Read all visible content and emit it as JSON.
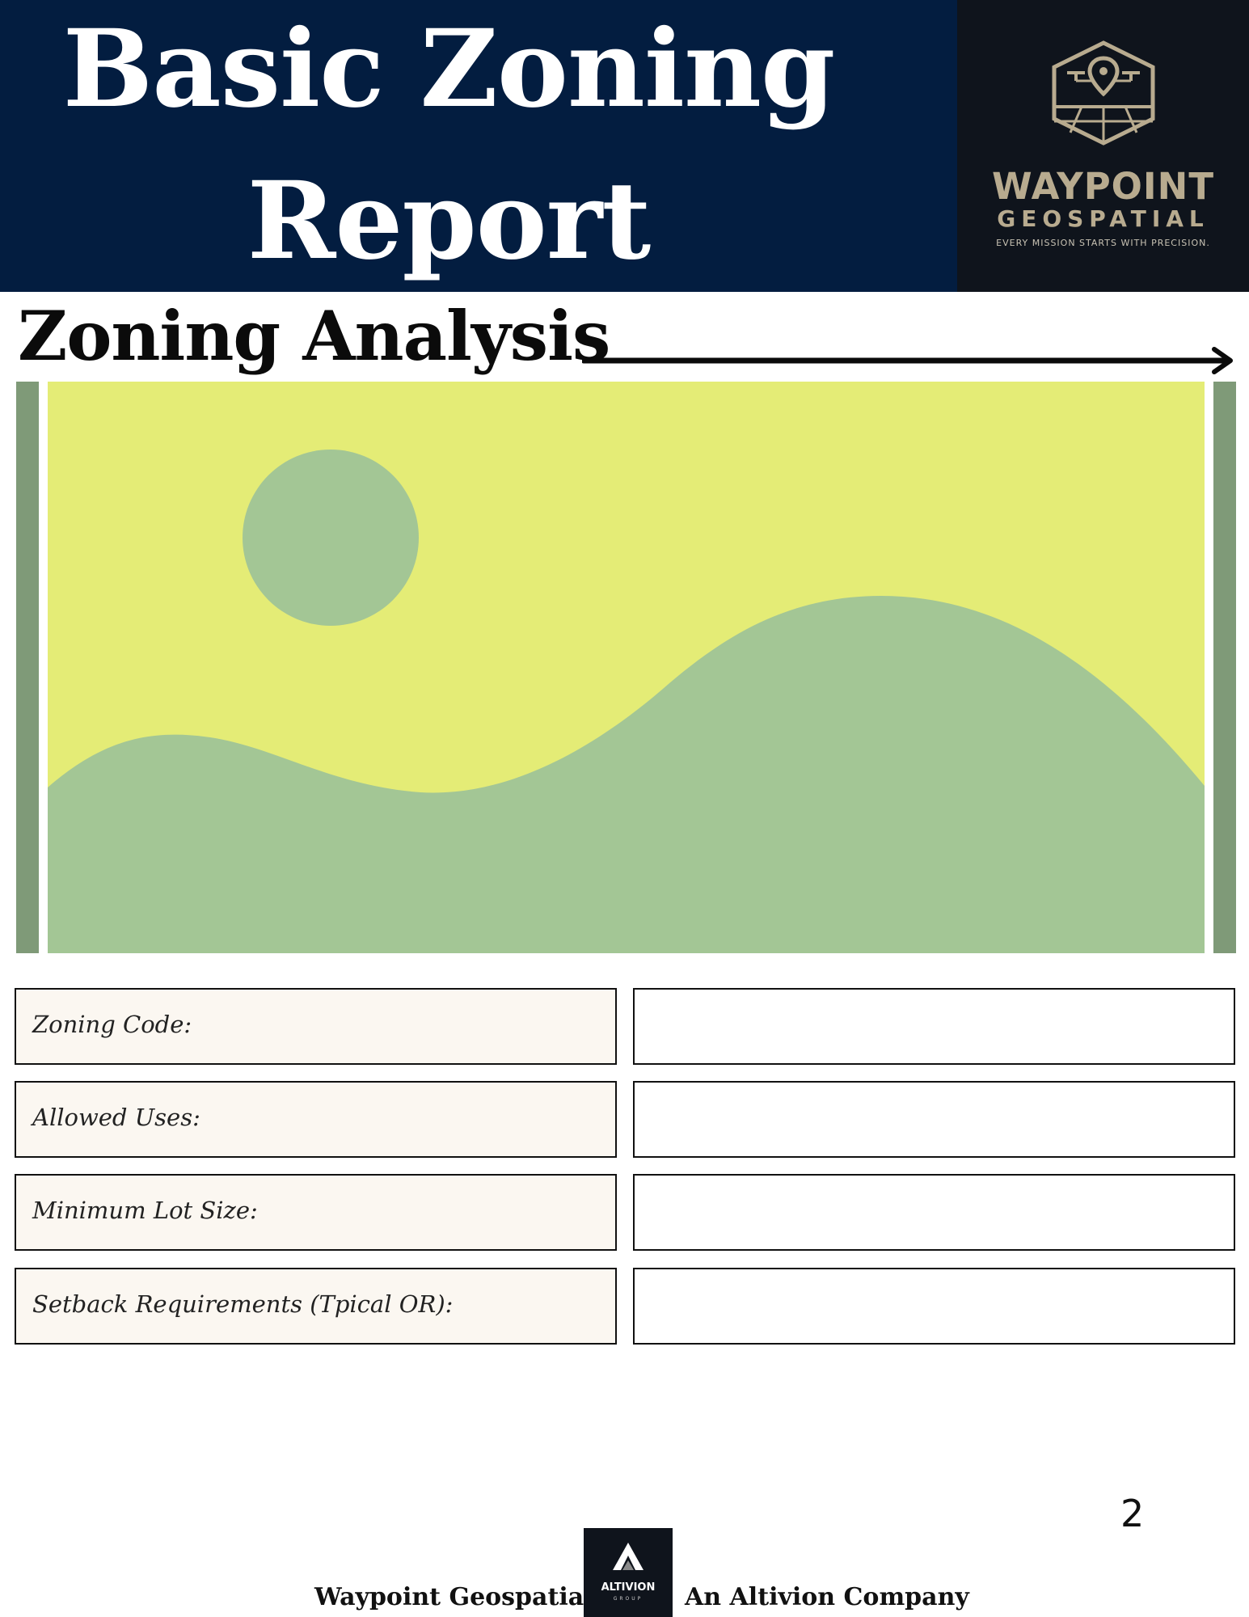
{
  "header": {
    "title_line1": "Basic Zoning",
    "title_line2": "Report",
    "title_bg": "#031d40",
    "logo": {
      "icon": "drone-map-pin-hexagon-icon",
      "name_line1": "WAYPOINT",
      "name_line2": "GEOSPATIAL",
      "tagline": "EVERY MISSION STARTS WITH PRECISION.",
      "accent": "#b8ab8f"
    }
  },
  "section": {
    "title": "Zoning Analysis",
    "arrow_icon": "arrow-right-icon"
  },
  "image_placeholder": {
    "icon": "landscape-placeholder-icon",
    "sky_color": "#e4ec76",
    "hill_color": "#a3c695",
    "frame_color": "#7f9a78"
  },
  "fields": [
    {
      "label": "Zoning Code:",
      "value": ""
    },
    {
      "label": "Allowed Uses:",
      "value": ""
    },
    {
      "label": "Minimum Lot Size:",
      "value": ""
    },
    {
      "label": "Setback Requirements (Tpical OR):",
      "value": ""
    }
  ],
  "page_number": "2",
  "footer": {
    "left_text": "Waypoint Geospatial —",
    "right_text": "An Altivion Company",
    "logo_icon": "altivion-a-icon",
    "logo_name": "ALTIVION",
    "logo_sub": "GROUP"
  }
}
